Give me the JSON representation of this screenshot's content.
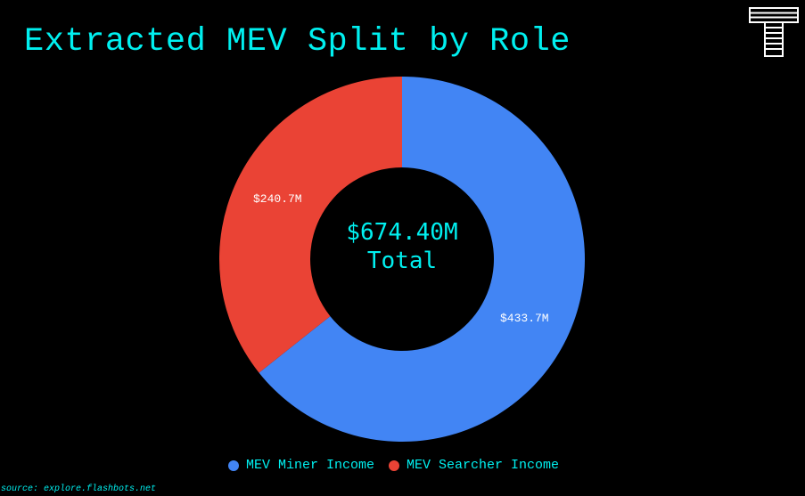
{
  "title": "Extracted MEV Split by Role",
  "logo": {
    "icon": "t-stripes-logo-icon"
  },
  "center": {
    "value": "$674.40M",
    "label": "Total"
  },
  "legend": [
    {
      "label": "MEV Miner Income",
      "color": "#4285f4"
    },
    {
      "label": "MEV Searcher Income",
      "color": "#ea4335"
    }
  ],
  "slices": [
    {
      "label": "$433.7M"
    },
    {
      "label": "$240.7M"
    }
  ],
  "source": "source: explore.flashbots.net",
  "chart_data": {
    "type": "pie",
    "variant": "donut",
    "title": "Extracted MEV Split by Role",
    "categories": [
      "MEV Miner Income",
      "MEV Searcher Income"
    ],
    "values": [
      433.7,
      240.7
    ],
    "unit": "USD millions",
    "value_labels": [
      "$433.7M",
      "$240.7M"
    ],
    "colors": [
      "#4285f4",
      "#ea4335"
    ],
    "total": 674.4,
    "center_text": [
      "$674.40M",
      "Total"
    ],
    "legend_position": "bottom",
    "source": "explore.flashbots.net"
  }
}
